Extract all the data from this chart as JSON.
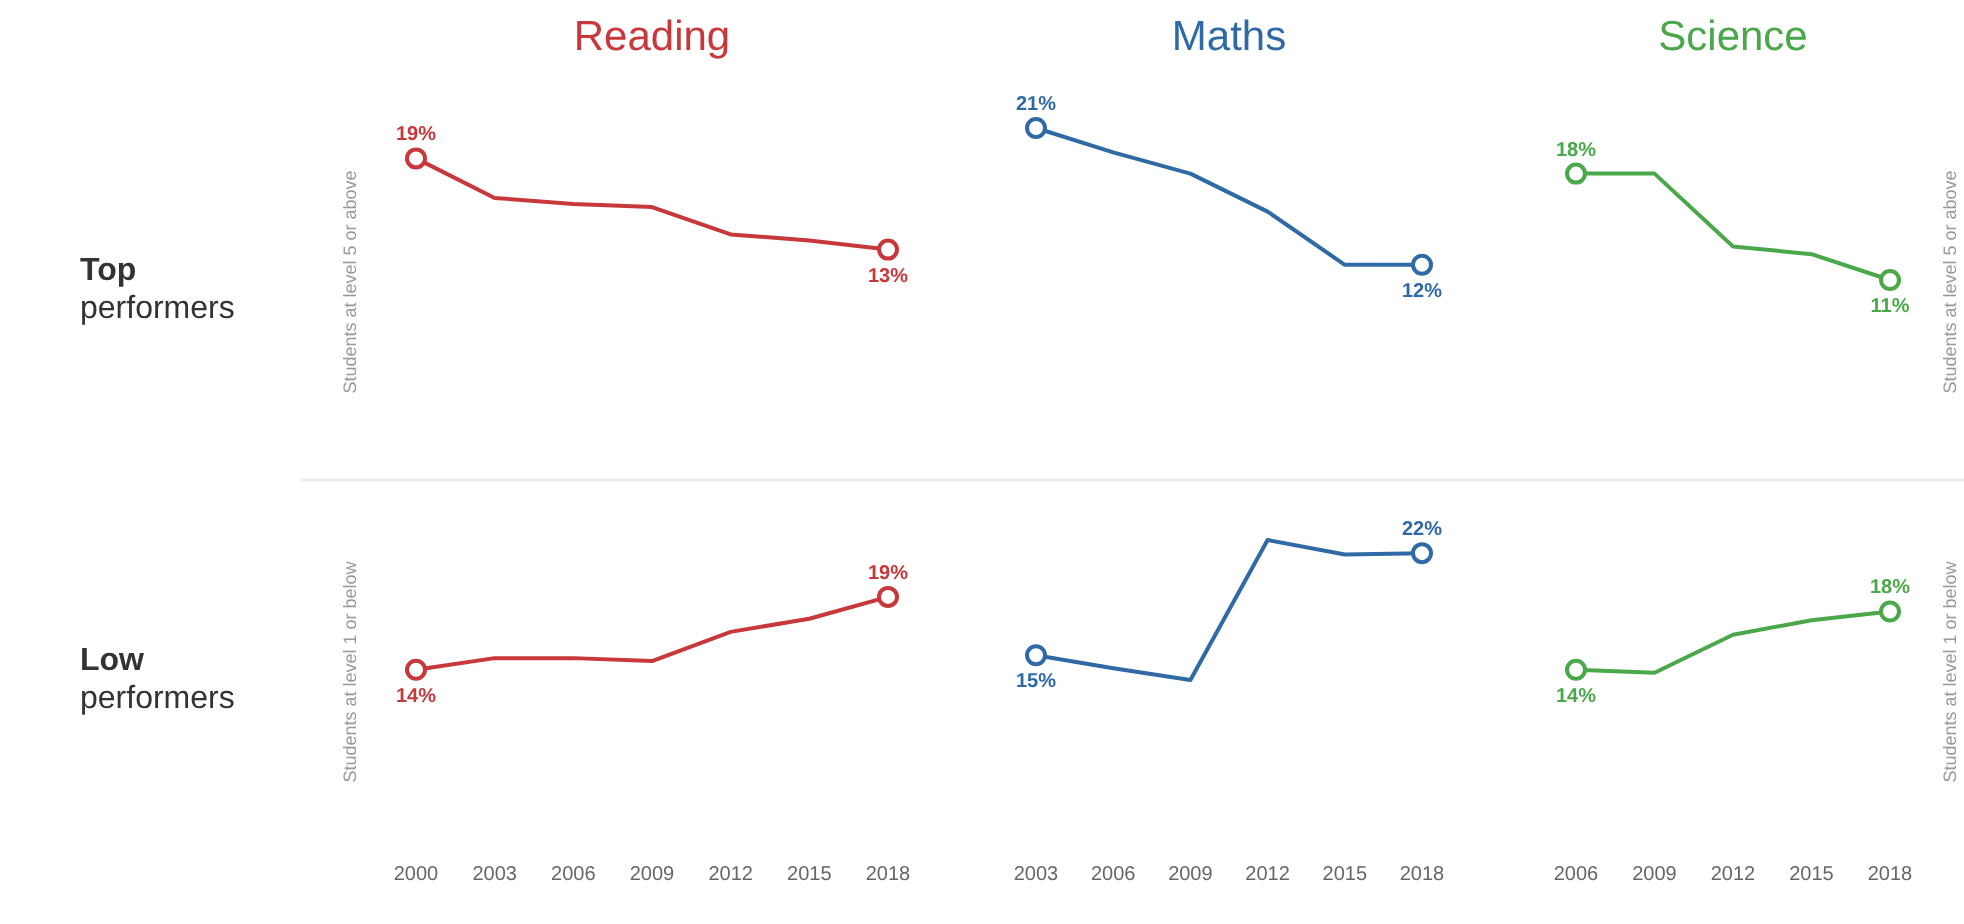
{
  "chart_data": [
    {
      "type": "line",
      "title": "Reading",
      "ylabel": "Students at level 5 or above",
      "annotations": [
        "Top performers"
      ],
      "categories": [
        null,
        null,
        null,
        null,
        null,
        null,
        null
      ],
      "tick_labels": false,
      "series": [
        {
          "color": "#c8383a",
          "values": [
            19,
            16.4,
            16.0,
            15.8,
            14.0,
            13.6,
            13
          ],
          "value_labels": [
            "19%",
            null,
            null,
            null,
            null,
            null,
            "13%"
          ]
        }
      ]
    },
    {
      "type": "line",
      "title": "Maths",
      "categories": [
        null,
        null,
        null,
        null,
        null,
        null
      ],
      "tick_labels": false,
      "series": [
        {
          "color": "#2f6aa6",
          "values": [
            21,
            19.4,
            18.0,
            15.5,
            12.0,
            12
          ],
          "value_labels": [
            "21%",
            null,
            null,
            null,
            null,
            "12%"
          ]
        }
      ]
    },
    {
      "type": "line",
      "title": "Science",
      "y2label": "Students at level 5 or above",
      "categories": [
        null,
        null,
        null,
        null,
        null
      ],
      "tick_labels": false,
      "series": [
        {
          "color": "#4aa84a",
          "values": [
            18,
            18,
            13.2,
            12.7,
            11
          ],
          "value_labels": [
            "18%",
            null,
            null,
            null,
            "11%"
          ]
        }
      ]
    },
    {
      "type": "line",
      "ylabel": "Students at level 1 or below",
      "annotations": [
        "Low performers"
      ],
      "categories": [
        "2000",
        "2003",
        "2006",
        "2009",
        "2012",
        "2015",
        "2018"
      ],
      "tick_labels": "x",
      "series": [
        {
          "color": "#c8383a",
          "values": [
            14,
            14.8,
            14.8,
            14.6,
            16.6,
            17.5,
            19
          ],
          "value_labels": [
            "14%",
            null,
            null,
            null,
            null,
            null,
            "19%"
          ]
        }
      ]
    },
    {
      "type": "line",
      "categories": [
        "2003",
        "2006",
        "2009",
        "2012",
        "2015",
        "2018"
      ],
      "tick_labels": "x",
      "series": [
        {
          "color": "#2f6aa6",
          "values": [
            15,
            14.1,
            13.3,
            22.9,
            21.9,
            22
          ],
          "value_labels": [
            "15%",
            null,
            null,
            null,
            null,
            "22%"
          ]
        }
      ]
    },
    {
      "type": "line",
      "y2label": "Students at level 1 or below",
      "categories": [
        "2006",
        "2009",
        "2012",
        "2015",
        "2018"
      ],
      "tick_labels": "x",
      "series": [
        {
          "color": "#4aa84a",
          "values": [
            14,
            13.8,
            16.4,
            17.4,
            18
          ],
          "value_labels": [
            "14%",
            null,
            null,
            null,
            "18%"
          ]
        }
      ]
    }
  ]
}
